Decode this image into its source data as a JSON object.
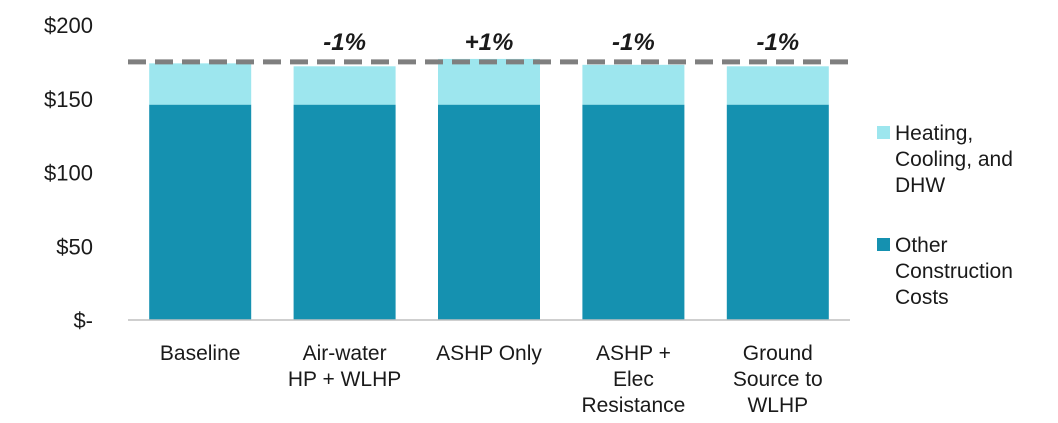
{
  "chart_data": {
    "type": "bar",
    "stacked": true,
    "title": "",
    "xlabel": "",
    "ylabel": "",
    "ylim": [
      0,
      200
    ],
    "yticks": [
      0,
      50,
      100,
      150,
      200
    ],
    "ytick_labels": [
      "$-",
      "$50",
      "$100",
      "$150",
      "$200"
    ],
    "categories": [
      [
        "Baseline"
      ],
      [
        "Air-water",
        "HP + WLHP"
      ],
      [
        "ASHP Only"
      ],
      [
        "ASHP +",
        "Elec",
        "Resistance"
      ],
      [
        "Ground",
        "Source to",
        "WLHP"
      ]
    ],
    "series": [
      {
        "name": [
          "Other",
          "Construction",
          "Costs"
        ],
        "color": "#1591b0",
        "values": [
          146,
          146,
          146,
          146,
          146
        ]
      },
      {
        "name": [
          "Heating,",
          "Cooling, and",
          "DHW"
        ],
        "color": "#9de6ee",
        "values": [
          28,
          26,
          31,
          27,
          26
        ]
      }
    ],
    "annotations": [
      "",
      "-1%",
      "+1%",
      "-1%",
      "-1%"
    ],
    "reference_line": {
      "value": 175,
      "style": "dashed",
      "color": "#7f7f7f"
    },
    "grid": false,
    "legend": "right"
  }
}
